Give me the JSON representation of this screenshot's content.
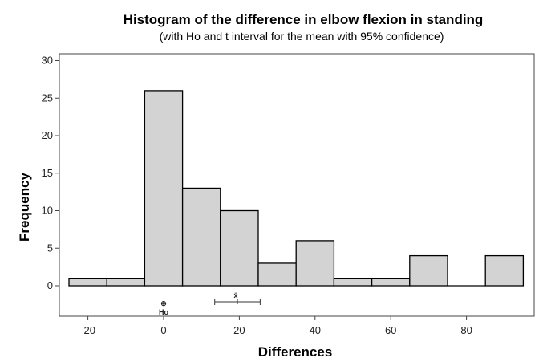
{
  "chart_data": {
    "type": "bar",
    "title": "Histogram of the difference in elbow flexion in standing",
    "subtitle": "(with Ho and t interval for the mean with 95% confidence)",
    "xlabel": "Differences",
    "ylabel": "Frequency",
    "bin_width": 10,
    "bins": [
      {
        "start": -25,
        "end": -15,
        "value": 1
      },
      {
        "start": -15,
        "end": -5,
        "value": 1
      },
      {
        "start": -5,
        "end": 5,
        "value": 26
      },
      {
        "start": 5,
        "end": 15,
        "value": 13
      },
      {
        "start": 15,
        "end": 25,
        "value": 10
      },
      {
        "start": 25,
        "end": 35,
        "value": 3
      },
      {
        "start": 35,
        "end": 45,
        "value": 6
      },
      {
        "start": 45,
        "end": 55,
        "value": 1
      },
      {
        "start": 55,
        "end": 65,
        "value": 1
      },
      {
        "start": 65,
        "end": 75,
        "value": 4
      },
      {
        "start": 75,
        "end": 85,
        "value": 0
      },
      {
        "start": 85,
        "end": 95,
        "value": 4
      }
    ],
    "x_ticks": [
      -20,
      0,
      20,
      40,
      60,
      80
    ],
    "y_ticks": [
      0,
      5,
      10,
      15,
      20,
      25,
      30
    ],
    "ylim": [
      -4,
      30
    ],
    "xlim": [
      -27,
      97
    ],
    "grid": false,
    "h0": {
      "value": 0,
      "label": "Ho",
      "symbol": "⊕"
    },
    "mean_interval": {
      "mean": 19.5,
      "lower": 13.5,
      "upper": 25.5,
      "label": "x̄"
    }
  }
}
